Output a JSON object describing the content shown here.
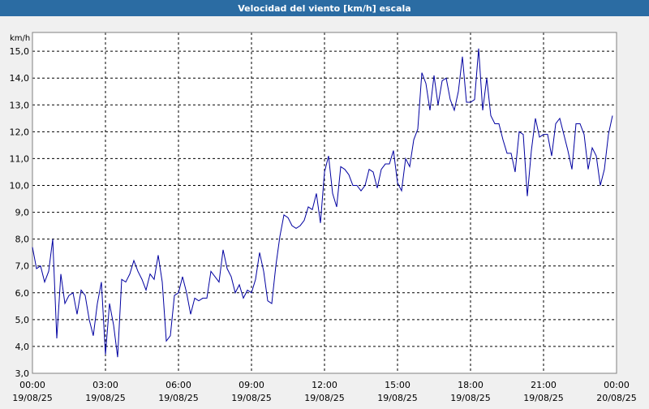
{
  "chart_data": {
    "type": "line",
    "title": "Velocidad del viento [km/h] escala",
    "y_label": "km/h",
    "x": [
      0,
      10,
      20,
      30,
      40,
      50,
      60,
      70,
      80,
      90,
      100,
      110,
      120,
      130,
      140,
      150,
      160,
      170,
      180,
      190,
      200,
      210,
      220,
      230,
      240,
      250,
      260,
      270,
      280,
      290,
      300,
      310,
      320,
      330,
      340,
      350,
      360,
      370,
      380,
      390,
      400,
      410,
      420,
      430,
      440,
      450,
      460,
      470,
      480,
      490,
      500,
      510,
      520,
      530,
      540,
      550,
      560,
      570,
      580,
      590,
      600,
      610,
      620,
      630,
      640,
      650,
      660,
      670,
      680,
      690,
      700,
      710,
      720,
      730,
      740,
      750,
      760,
      770,
      780,
      790,
      800,
      810,
      820,
      830,
      840,
      850,
      860,
      870,
      880,
      890,
      900,
      910,
      920,
      930,
      940,
      950,
      960,
      970,
      980,
      990,
      1000,
      1010,
      1020,
      1030,
      1040,
      1050,
      1060,
      1070,
      1080,
      1090,
      1100,
      1110,
      1120,
      1130,
      1140,
      1150,
      1160,
      1170,
      1180,
      1190,
      1200,
      1210,
      1220,
      1230,
      1240,
      1250,
      1260,
      1270,
      1280,
      1290,
      1300,
      1310,
      1320,
      1330,
      1340,
      1350,
      1360,
      1370,
      1380,
      1390,
      1400,
      1410,
      1420,
      1430
    ],
    "series": [
      {
        "color": "#0000a0",
        "values": [
          7.7,
          6.9,
          7.0,
          6.4,
          6.8,
          8.0,
          4.3,
          6.7,
          5.6,
          5.9,
          6.0,
          5.2,
          6.1,
          5.9,
          5.0,
          4.4,
          5.6,
          6.4,
          3.7,
          5.6,
          4.8,
          3.6,
          6.5,
          6.4,
          6.7,
          7.2,
          6.8,
          6.5,
          6.1,
          6.7,
          6.5,
          7.4,
          6.4,
          4.2,
          4.4,
          5.9,
          6.0,
          6.6,
          6.0,
          5.2,
          5.8,
          5.7,
          5.8,
          5.8,
          6.8,
          6.6,
          6.4,
          7.6,
          6.9,
          6.6,
          6.0,
          6.3,
          5.8,
          6.1,
          6.0,
          6.5,
          7.5,
          6.8,
          5.7,
          5.6,
          7.0,
          8.1,
          8.9,
          8.8,
          8.5,
          8.4,
          8.5,
          8.7,
          9.2,
          9.1,
          9.7,
          8.6,
          10.5,
          11.1,
          9.7,
          9.2,
          10.7,
          10.6,
          10.4,
          10.0,
          10.0,
          9.8,
          10.0,
          10.6,
          10.5,
          9.9,
          10.6,
          10.8,
          10.8,
          11.3,
          10.1,
          9.8,
          11.0,
          10.7,
          11.7,
          12.1,
          14.2,
          13.8,
          12.8,
          14.1,
          13.0,
          13.9,
          14.0,
          13.2,
          12.8,
          13.5,
          14.8,
          13.1,
          13.1,
          13.2,
          15.1,
          12.8,
          14.0,
          12.6,
          12.3,
          12.3,
          11.7,
          11.2,
          11.2,
          10.5,
          12.0,
          11.9,
          9.6,
          11.3,
          12.5,
          11.8,
          11.9,
          11.9,
          11.1,
          12.3,
          12.5,
          11.9,
          11.3,
          10.6,
          12.3,
          12.3,
          11.9,
          10.6,
          11.4,
          11.1,
          10.0,
          10.6,
          11.9,
          12.6
        ]
      }
    ],
    "xlim": [
      0,
      1440
    ],
    "xticks": [
      {
        "value": 0,
        "label": "00:00"
      },
      {
        "value": 180,
        "label": "03:00"
      },
      {
        "value": 360,
        "label": "06:00"
      },
      {
        "value": 540,
        "label": "09:00"
      },
      {
        "value": 720,
        "label": "12:00"
      },
      {
        "value": 900,
        "label": "15:00"
      },
      {
        "value": 1080,
        "label": "18:00"
      },
      {
        "value": 1260,
        "label": "21:00"
      },
      {
        "value": 1440,
        "label": "00:00"
      }
    ],
    "xtick_dates": [
      "19/08/25",
      "19/08/25",
      "19/08/25",
      "19/08/25",
      "19/08/25",
      "19/08/25",
      "19/08/25",
      "19/08/25",
      "20/08/25"
    ],
    "ylim": [
      3,
      15.7
    ],
    "yticks": [
      {
        "value": 3,
        "label": "3,0"
      },
      {
        "value": 4,
        "label": "4,0"
      },
      {
        "value": 5,
        "label": "5,0"
      },
      {
        "value": 6,
        "label": "6,0"
      },
      {
        "value": 7,
        "label": "7,0"
      },
      {
        "value": 8,
        "label": "8,0"
      },
      {
        "value": 9,
        "label": "9,0"
      },
      {
        "value": 10,
        "label": "10,0"
      },
      {
        "value": 11,
        "label": "11,0"
      },
      {
        "value": 12,
        "label": "12,0"
      },
      {
        "value": 13,
        "label": "13,0"
      },
      {
        "value": 14,
        "label": "14,0"
      },
      {
        "value": 15,
        "label": "15,0"
      }
    ],
    "grid": true
  }
}
